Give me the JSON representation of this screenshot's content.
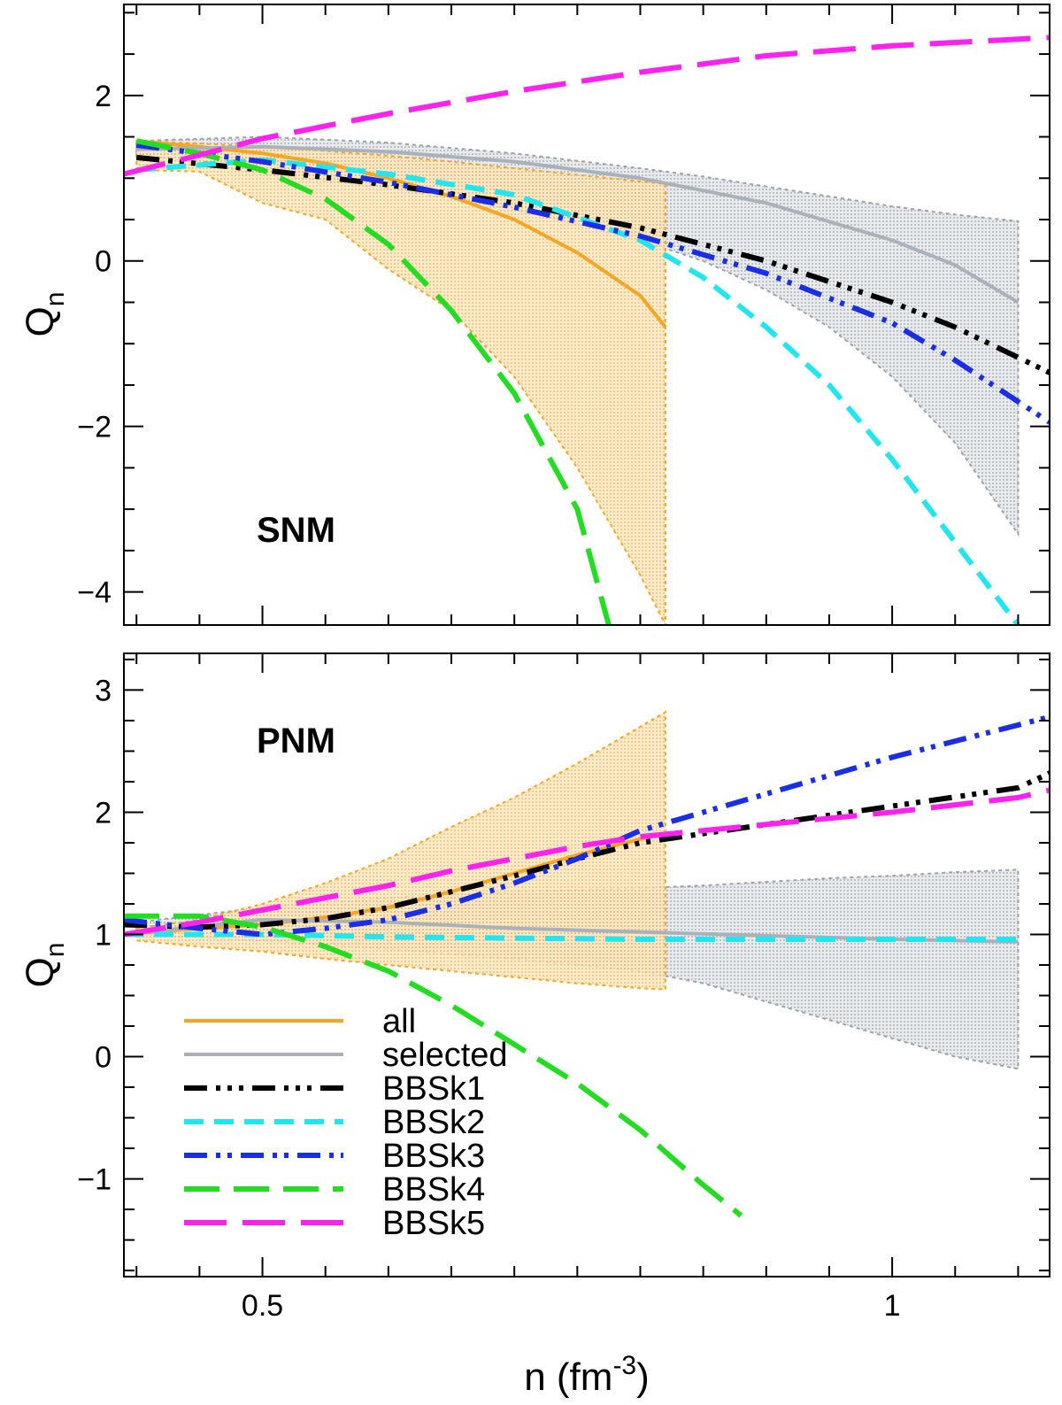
{
  "chart_data": [
    {
      "type": "line",
      "panel_label": "SNM",
      "ylabel": "Q",
      "ylabel_sub": "n",
      "xlim": [
        0.39,
        1.125
      ],
      "ylim": [
        -4.4,
        3.1
      ],
      "yticks_major": [
        -4,
        -2,
        0,
        2
      ],
      "ytick_labels": [
        "−4",
        "−2",
        "0",
        "2"
      ],
      "bands": [
        {
          "name": "all",
          "color": "#f5a623",
          "x": [
            0.4,
            0.45,
            0.5,
            0.55,
            0.6,
            0.65,
            0.7,
            0.75,
            0.8,
            0.82
          ],
          "upper": [
            1.45,
            1.42,
            1.38,
            1.33,
            1.27,
            1.2,
            1.12,
            1.04,
            0.96,
            0.93
          ],
          "lower": [
            1.1,
            1.08,
            0.7,
            0.5,
            -0.1,
            -0.6,
            -1.4,
            -2.5,
            -3.8,
            -4.4
          ]
        },
        {
          "name": "selected",
          "color": "#9aa3ad",
          "x": [
            0.4,
            0.5,
            0.6,
            0.7,
            0.8,
            0.85,
            0.9,
            0.95,
            1.0,
            1.05,
            1.1
          ],
          "upper": [
            1.45,
            1.5,
            1.43,
            1.3,
            1.12,
            1.02,
            0.9,
            0.78,
            0.66,
            0.56,
            0.48
          ],
          "lower": [
            1.3,
            1.05,
            0.88,
            0.62,
            0.25,
            0.0,
            -0.35,
            -0.8,
            -1.4,
            -2.2,
            -3.3
          ]
        }
      ],
      "series": [
        {
          "name": "all",
          "color": "#f5a623",
          "dash": "",
          "width": 4,
          "x": [
            0.4,
            0.45,
            0.5,
            0.55,
            0.6,
            0.65,
            0.7,
            0.75,
            0.8,
            0.82
          ],
          "y": [
            1.45,
            1.38,
            1.3,
            1.18,
            1.0,
            0.78,
            0.5,
            0.1,
            -0.42,
            -0.8
          ]
        },
        {
          "name": "selected",
          "color": "#aab1ba",
          "dash": "",
          "width": 4,
          "x": [
            0.4,
            0.5,
            0.6,
            0.7,
            0.8,
            0.9,
            1.0,
            1.05,
            1.1
          ],
          "y": [
            1.35,
            1.38,
            1.32,
            1.2,
            1.0,
            0.7,
            0.25,
            -0.05,
            -0.5
          ]
        },
        {
          "name": "BBSk1",
          "color": "#000000",
          "dash": "26,10,5,8,5,8,5,10",
          "width": 6,
          "x": [
            0.4,
            0.5,
            0.6,
            0.7,
            0.8,
            0.9,
            1.0,
            1.05,
            1.125
          ],
          "y": [
            1.25,
            1.1,
            0.92,
            0.7,
            0.4,
            0.0,
            -0.5,
            -0.8,
            -1.35
          ]
        },
        {
          "name": "BBSk2",
          "color": "#22e5f0",
          "dash": "22,12",
          "width": 6,
          "x": [
            0.4,
            0.5,
            0.6,
            0.7,
            0.8,
            0.85,
            0.9,
            0.95,
            1.0,
            1.05,
            1.1
          ],
          "y": [
            1.1,
            1.22,
            1.05,
            0.8,
            0.25,
            -0.2,
            -0.8,
            -1.5,
            -2.4,
            -3.4,
            -4.4
          ]
        },
        {
          "name": "BBSk3",
          "color": "#1a2ee6",
          "dash": "26,10,5,8,5,10",
          "width": 6,
          "x": [
            0.4,
            0.5,
            0.6,
            0.7,
            0.8,
            0.9,
            1.0,
            1.05,
            1.125
          ],
          "y": [
            1.4,
            1.2,
            0.95,
            0.65,
            0.3,
            -0.15,
            -0.75,
            -1.2,
            -1.95
          ]
        },
        {
          "name": "BBSk4",
          "color": "#22dd22",
          "dash": "40,16",
          "width": 6,
          "x": [
            0.4,
            0.45,
            0.5,
            0.55,
            0.6,
            0.65,
            0.7,
            0.75,
            0.775
          ],
          "y": [
            1.45,
            1.3,
            1.1,
            0.75,
            0.2,
            -0.6,
            -1.6,
            -3.0,
            -4.4
          ]
        },
        {
          "name": "BBSk5",
          "color": "#ff22ee",
          "dash": "48,18",
          "width": 6,
          "x": [
            0.39,
            0.45,
            0.5,
            0.6,
            0.7,
            0.8,
            0.9,
            1.0,
            1.1,
            1.125
          ],
          "y": [
            1.05,
            1.28,
            1.48,
            1.78,
            2.05,
            2.28,
            2.48,
            2.6,
            2.68,
            2.7
          ]
        }
      ]
    },
    {
      "type": "line",
      "panel_label": "PNM",
      "xlabel": "n (fm",
      "xlabel_sup": "-3",
      "xlabel_close": ")",
      "ylabel": "Q",
      "ylabel_sub": "n",
      "xlim": [
        0.39,
        1.125
      ],
      "ylim": [
        -1.8,
        3.3
      ],
      "yticks_major": [
        -1,
        0,
        1,
        2,
        3
      ],
      "ytick_labels": [
        "−1",
        "0",
        "1",
        "2",
        "3"
      ],
      "xticks_major": [
        0.5,
        1.0
      ],
      "xtick_labels": [
        "0.5",
        "1"
      ],
      "bands": [
        {
          "name": "all",
          "color": "#f5a623",
          "x": [
            0.4,
            0.45,
            0.5,
            0.55,
            0.6,
            0.65,
            0.7,
            0.75,
            0.8,
            0.82
          ],
          "upper": [
            1.05,
            1.12,
            1.25,
            1.42,
            1.62,
            1.88,
            2.12,
            2.4,
            2.7,
            2.82
          ],
          "lower": [
            0.95,
            0.9,
            0.86,
            0.8,
            0.75,
            0.7,
            0.65,
            0.6,
            0.56,
            0.55
          ]
        },
        {
          "name": "selected",
          "color": "#9aa3ad",
          "x": [
            0.4,
            0.5,
            0.6,
            0.7,
            0.8,
            0.85,
            0.9,
            0.95,
            1.0,
            1.05,
            1.1
          ],
          "upper": [
            1.1,
            1.22,
            1.3,
            1.35,
            1.38,
            1.4,
            1.43,
            1.46,
            1.48,
            1.51,
            1.53
          ],
          "lower": [
            1.0,
            0.95,
            0.88,
            0.8,
            0.7,
            0.6,
            0.45,
            0.3,
            0.15,
            0.0,
            -0.1
          ]
        }
      ],
      "series": [
        {
          "name": "all",
          "color": "#f5a623",
          "dash": "",
          "width": 4,
          "x": [
            0.39,
            0.45,
            0.5,
            0.55,
            0.6,
            0.65,
            0.7,
            0.75,
            0.8,
            0.82
          ],
          "y": [
            1.0,
            1.05,
            1.08,
            1.14,
            1.22,
            1.35,
            1.5,
            1.65,
            1.78,
            1.83
          ]
        },
        {
          "name": "selected",
          "color": "#aab1ba",
          "dash": "",
          "width": 4,
          "x": [
            0.39,
            0.5,
            0.6,
            0.7,
            0.8,
            0.9,
            1.0,
            1.1
          ],
          "y": [
            1.0,
            1.12,
            1.1,
            1.05,
            1.02,
            0.99,
            0.96,
            0.94
          ]
        },
        {
          "name": "BBSk1",
          "color": "#000000",
          "dash": "26,10,5,8,5,8,5,10",
          "width": 6,
          "x": [
            0.39,
            0.45,
            0.5,
            0.55,
            0.6,
            0.65,
            0.7,
            0.75,
            0.8,
            0.9,
            1.0,
            1.1,
            1.125
          ],
          "y": [
            1.08,
            1.06,
            1.08,
            1.13,
            1.22,
            1.35,
            1.48,
            1.62,
            1.75,
            1.9,
            2.05,
            2.2,
            2.32
          ]
        },
        {
          "name": "BBSk2",
          "color": "#22e5f0",
          "dash": "22,12",
          "width": 6,
          "x": [
            0.39,
            0.5,
            0.6,
            0.7,
            0.8,
            0.9,
            1.0,
            1.1
          ],
          "y": [
            1.0,
            1.0,
            0.98,
            0.97,
            0.96,
            0.96,
            0.96,
            0.96
          ]
        },
        {
          "name": "BBSk3",
          "color": "#1a2ee6",
          "dash": "26,10,5,8,5,10",
          "width": 6,
          "x": [
            0.39,
            0.45,
            0.5,
            0.55,
            0.6,
            0.65,
            0.7,
            0.75,
            0.8,
            0.9,
            1.0,
            1.125
          ],
          "y": [
            1.12,
            1.05,
            1.0,
            1.05,
            1.12,
            1.25,
            1.42,
            1.62,
            1.85,
            2.15,
            2.45,
            2.78
          ]
        },
        {
          "name": "BBSk4",
          "color": "#22dd22",
          "dash": "40,16",
          "width": 6,
          "x": [
            0.39,
            0.45,
            0.5,
            0.55,
            0.6,
            0.65,
            0.7,
            0.75,
            0.8,
            0.85,
            0.88
          ],
          "y": [
            1.15,
            1.15,
            1.06,
            0.9,
            0.7,
            0.42,
            0.1,
            -0.22,
            -0.6,
            -1.05,
            -1.3
          ]
        },
        {
          "name": "BBSk5",
          "color": "#ff22ee",
          "dash": "48,18",
          "width": 6,
          "x": [
            0.39,
            0.45,
            0.5,
            0.55,
            0.6,
            0.65,
            0.7,
            0.75,
            0.8,
            0.9,
            1.0,
            1.1,
            1.125
          ],
          "y": [
            1.0,
            1.1,
            1.2,
            1.3,
            1.4,
            1.52,
            1.62,
            1.72,
            1.8,
            1.9,
            2.0,
            2.12,
            2.18
          ]
        }
      ],
      "legend": {
        "placement": "bottom-left",
        "entries": [
          "all",
          "selected",
          "BBSk1",
          "BBSk2",
          "BBSk3",
          "BBSk4",
          "BBSk5"
        ]
      }
    }
  ]
}
